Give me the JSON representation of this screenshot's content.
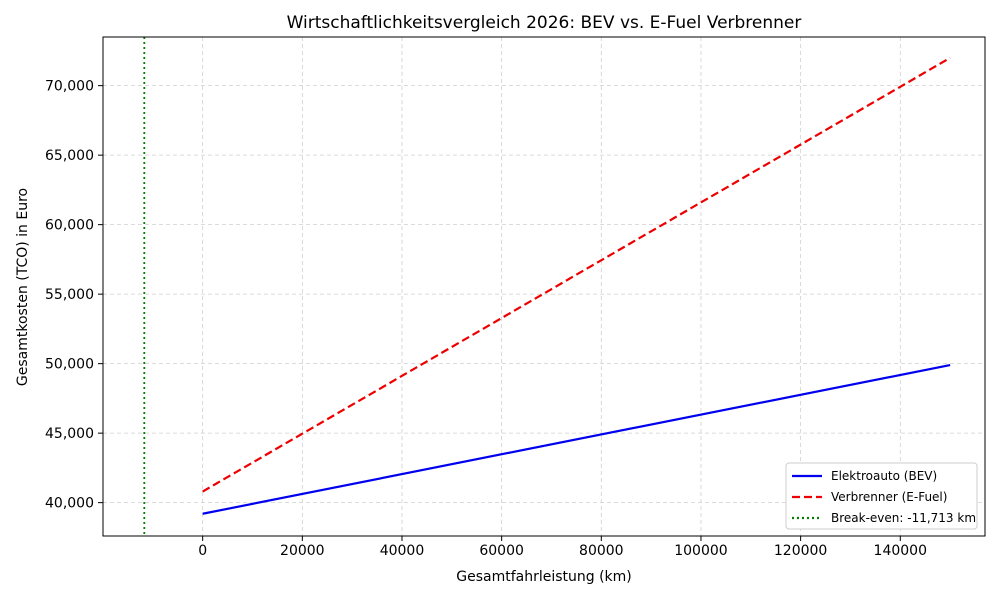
{
  "chart_data": {
    "type": "line",
    "title": "Wirtschaftlichkeitsvergleich 2026: BEV vs. E-Fuel Verbrenner",
    "xlabel": "Gesamtfahrleistung (km)",
    "ylabel": "Gesamtkosten (TCO) in Euro",
    "xlim": [
      -20000,
      157000
    ],
    "ylim": [
      37600,
      73500
    ],
    "xticks": [
      0,
      20000,
      40000,
      60000,
      80000,
      100000,
      120000,
      140000
    ],
    "xtick_labels": [
      "0",
      "20000",
      "40000",
      "60000",
      "80000",
      "100000",
      "120000",
      "140000"
    ],
    "yticks": [
      40000,
      45000,
      50000,
      55000,
      60000,
      65000,
      70000
    ],
    "ytick_labels": [
      "40,000",
      "45,000",
      "50,000",
      "55,000",
      "60,000",
      "65,000",
      "70,000"
    ],
    "grid": true,
    "legend_position": "bottom-right",
    "series": [
      {
        "name": "Elektroauto (BEV)",
        "x": [
          0,
          150000
        ],
        "y": [
          39200,
          49900
        ],
        "color": "#0000ee",
        "style": "solid"
      },
      {
        "name": "Verbrenner (E-Fuel)",
        "x": [
          0,
          150000
        ],
        "y": [
          40800,
          72000
        ],
        "color": "#ee0000",
        "style": "dashed"
      }
    ],
    "vline": {
      "name": "Break-even: -11,713 km",
      "x": -11713,
      "color": "#008000",
      "style": "dotted"
    }
  }
}
